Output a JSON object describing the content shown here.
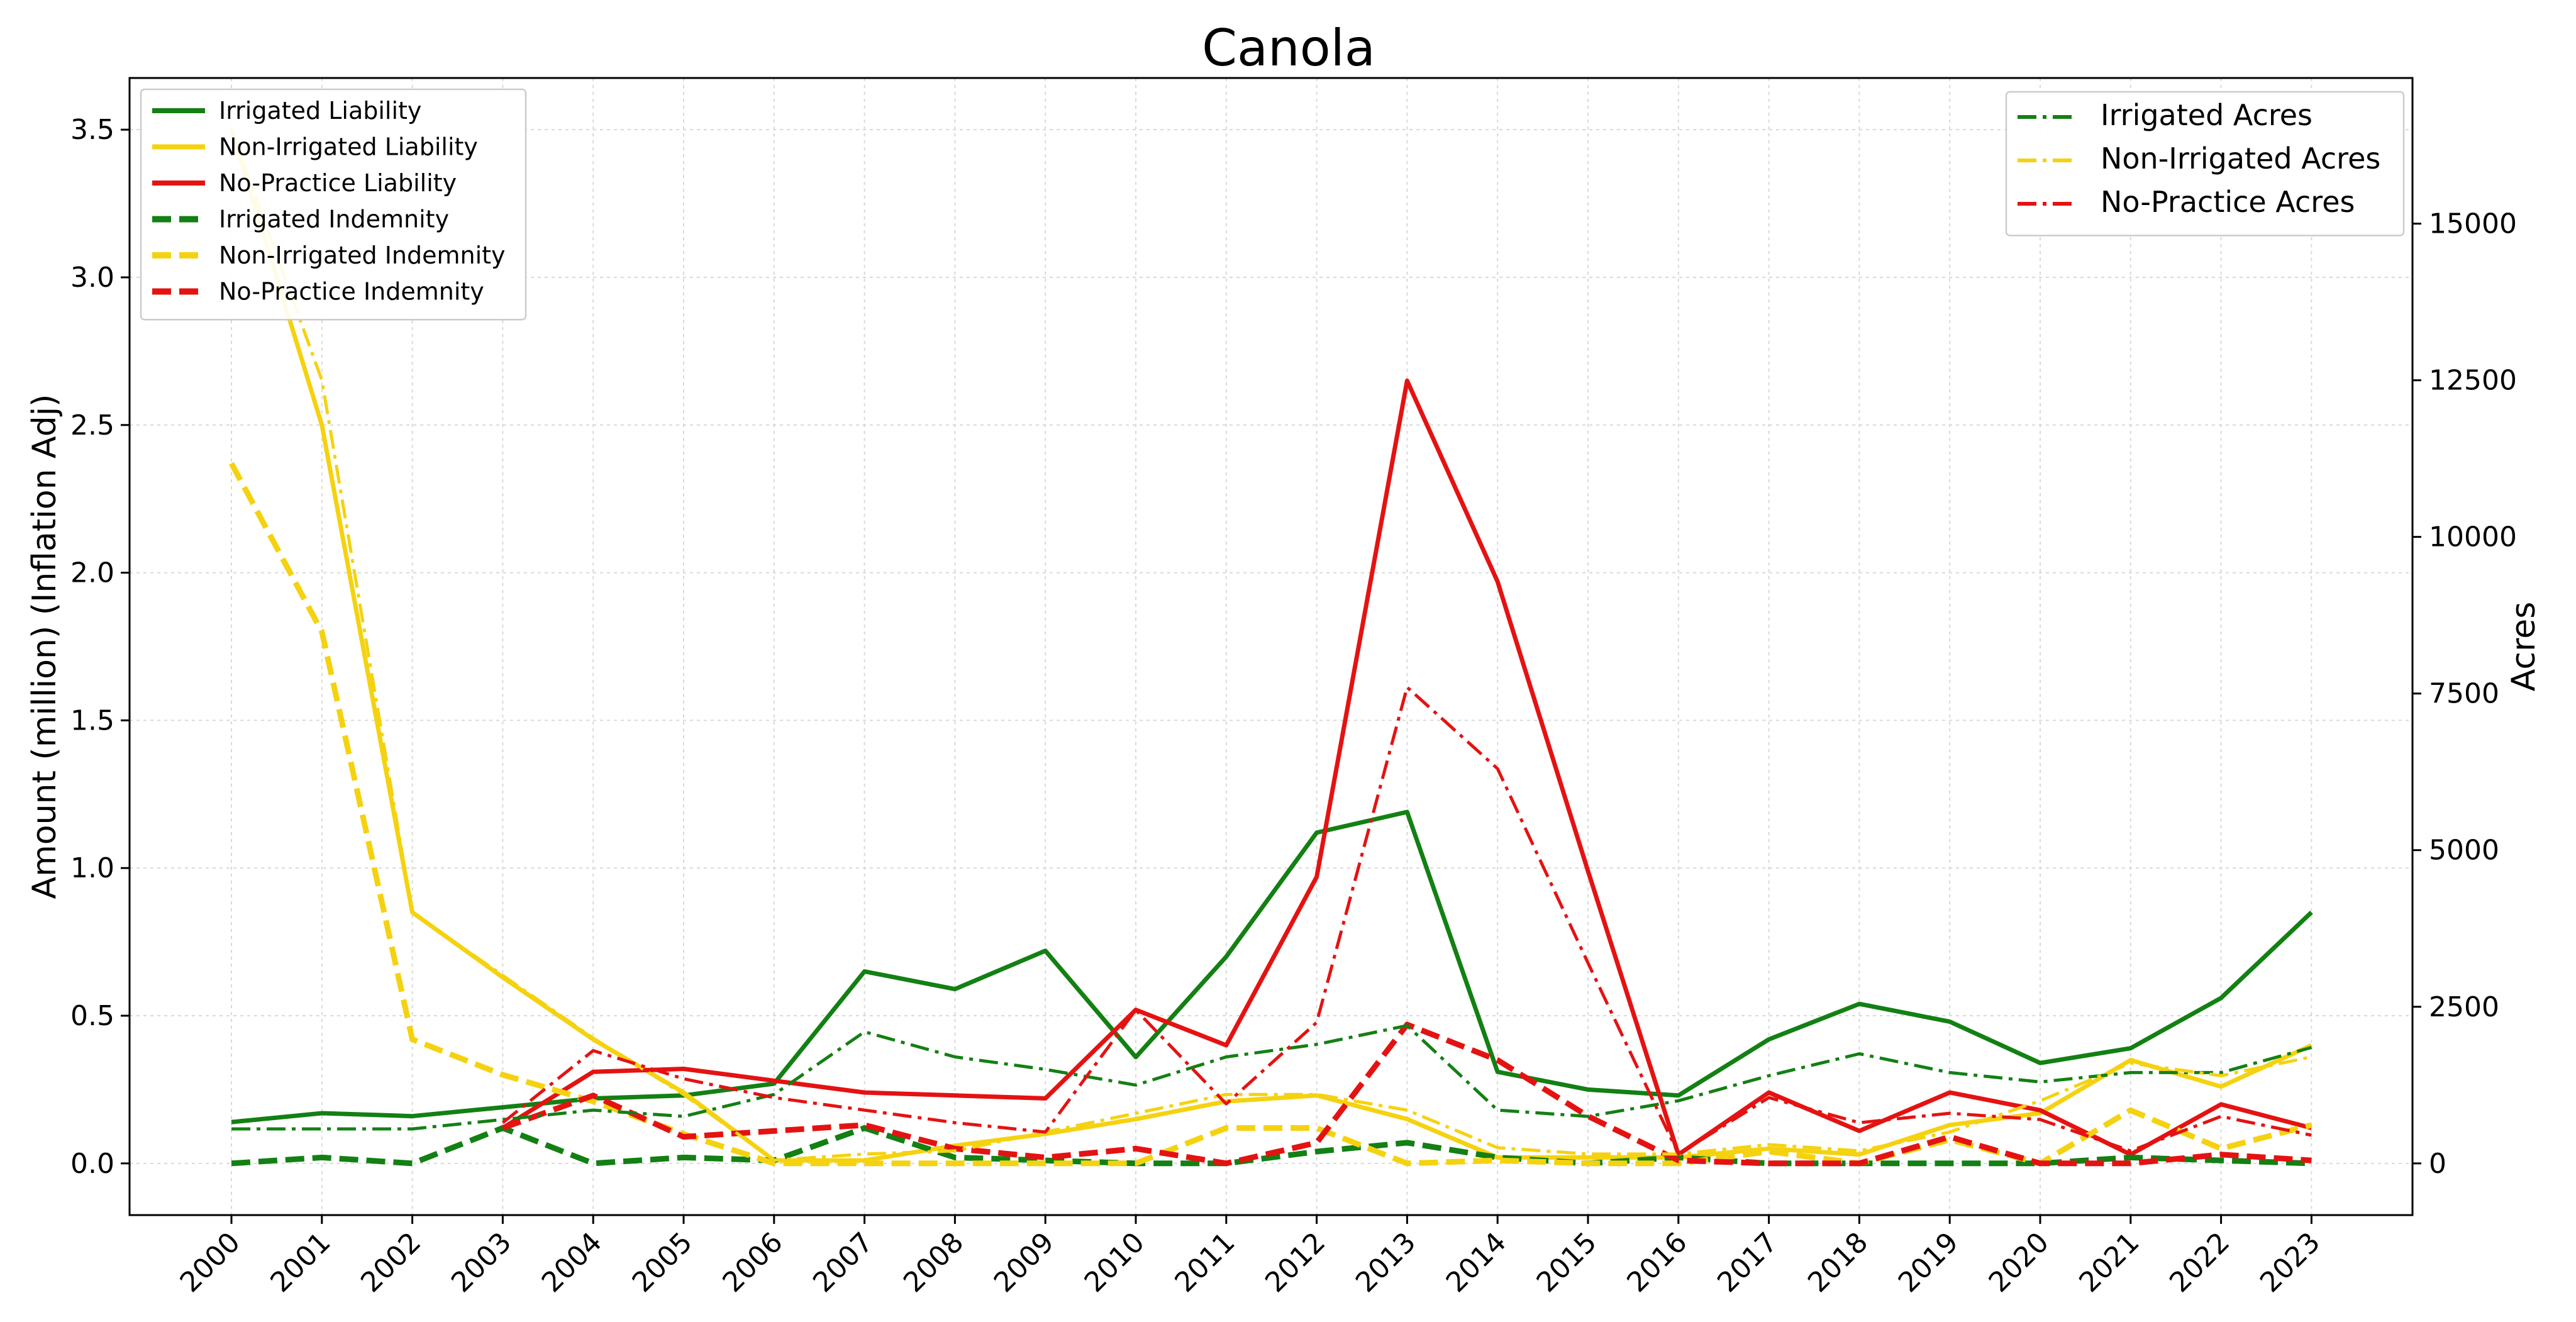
{
  "chart_data": {
    "type": "line",
    "title": "Canola",
    "xlabel": "",
    "ylabel": "Amount (million) (Inflation Adj)",
    "y2label": "Acres",
    "x": [
      2000,
      2001,
      2002,
      2003,
      2004,
      2005,
      2006,
      2007,
      2008,
      2009,
      2010,
      2011,
      2012,
      2013,
      2014,
      2015,
      2016,
      2017,
      2018,
      2019,
      2020,
      2021,
      2022,
      2023
    ],
    "xtick_labels": [
      "2000",
      "2001",
      "2002",
      "2003",
      "2004",
      "2005",
      "2006",
      "2007",
      "2008",
      "2009",
      "2010",
      "2011",
      "2012",
      "2013",
      "2014",
      "2015",
      "2016",
      "2017",
      "2018",
      "2019",
      "2020",
      "2021",
      "2022",
      "2023"
    ],
    "ylim": [
      -0.175,
      3.675
    ],
    "yticks": [
      0.0,
      0.5,
      1.0,
      1.5,
      2.0,
      2.5,
      3.0,
      3.5
    ],
    "ytick_labels": [
      "0.0",
      "0.5",
      "1.0",
      "1.5",
      "2.0",
      "2.5",
      "3.0",
      "3.5"
    ],
    "y2lim": [
      -825,
      17325
    ],
    "y2ticks": [
      0,
      2500,
      5000,
      7500,
      10000,
      12500,
      15000
    ],
    "y2tick_labels": [
      "0",
      "2500",
      "5000",
      "7500",
      "10000",
      "12500",
      "15000"
    ],
    "grid": true,
    "left_legend_placement": "top-left",
    "right_legend_placement": "top-right",
    "series": [
      {
        "name": "Irrigated Liability",
        "axis": "left",
        "color": "#138013",
        "style": "solid",
        "values": [
          0.14,
          0.17,
          0.16,
          0.19,
          0.22,
          0.23,
          0.27,
          0.65,
          0.59,
          0.72,
          0.36,
          0.7,
          1.12,
          1.19,
          0.31,
          0.25,
          0.23,
          0.42,
          0.54,
          0.48,
          0.34,
          0.39,
          0.56,
          0.85
        ]
      },
      {
        "name": "Non-Irrigated Liability",
        "axis": "left",
        "color": "#F5D20F",
        "style": "solid",
        "values": [
          3.5,
          2.5,
          0.85,
          0.63,
          0.42,
          0.24,
          0.01,
          0.01,
          0.06,
          0.1,
          0.15,
          0.21,
          0.23,
          0.15,
          0.02,
          0.02,
          0.02,
          0.05,
          0.03,
          0.13,
          0.17,
          0.35,
          0.26,
          0.4
        ]
      },
      {
        "name": "No-Practice Liability",
        "axis": "left",
        "color": "#E51212",
        "style": "solid",
        "values": [
          null,
          null,
          null,
          0.12,
          0.31,
          0.32,
          0.28,
          0.24,
          0.23,
          0.22,
          0.52,
          0.4,
          0.97,
          2.65,
          1.97,
          0.99,
          0.03,
          0.24,
          0.11,
          0.24,
          0.18,
          0.03,
          0.2,
          0.12
        ]
      },
      {
        "name": "Irrigated Indemnity",
        "axis": "left",
        "color": "#138013",
        "style": "dashed",
        "values": [
          0.0,
          0.02,
          0.0,
          0.12,
          0.0,
          0.02,
          0.01,
          0.12,
          0.02,
          0.01,
          0.0,
          0.0,
          0.04,
          0.07,
          0.02,
          0.0,
          0.02,
          0.0,
          0.0,
          0.0,
          0.0,
          0.02,
          0.01,
          0.0
        ]
      },
      {
        "name": "Non-Irrigated Indemnity",
        "axis": "left",
        "color": "#F5D20F",
        "style": "dashed",
        "values": [
          2.37,
          1.8,
          0.42,
          0.3,
          0.21,
          0.1,
          0.0,
          0.0,
          0.0,
          0.0,
          0.0,
          0.12,
          0.12,
          0.0,
          0.01,
          0.0,
          0.0,
          0.04,
          0.0,
          0.08,
          0.0,
          0.18,
          0.05,
          0.13
        ]
      },
      {
        "name": "No-Practice Indemnity",
        "axis": "left",
        "color": "#E51212",
        "style": "dashed",
        "values": [
          null,
          null,
          null,
          0.12,
          0.23,
          0.09,
          0.11,
          0.13,
          0.05,
          0.02,
          0.05,
          0.0,
          0.07,
          0.47,
          0.35,
          0.16,
          0.01,
          0.0,
          0.0,
          0.09,
          0.0,
          0.0,
          0.03,
          0.01
        ]
      },
      {
        "name": "Irrigated Acres",
        "axis": "right",
        "color": "#138013",
        "style": "dashdot",
        "values": [
          550,
          550,
          550,
          700,
          850,
          750,
          1100,
          2100,
          1700,
          1500,
          1250,
          1700,
          1900,
          2200,
          850,
          750,
          1000,
          1400,
          1750,
          1450,
          1300,
          1450,
          1450,
          1850
        ]
      },
      {
        "name": "Non-Irrigated Acres",
        "axis": "right",
        "color": "#F5D20F",
        "style": "dashdot",
        "values": [
          16500,
          12500,
          4000,
          3000,
          2000,
          1100,
          50,
          150,
          200,
          500,
          800,
          1100,
          1100,
          850,
          250,
          150,
          150,
          300,
          200,
          500,
          1000,
          1600,
          1400,
          1700
        ]
      },
      {
        "name": "No-Practice Acres",
        "axis": "right",
        "color": "#E51212",
        "style": "dashdot",
        "values": [
          null,
          null,
          null,
          650,
          1800,
          1350,
          1050,
          850,
          650,
          500,
          2450,
          950,
          2250,
          7600,
          6300,
          3200,
          150,
          1050,
          650,
          800,
          700,
          200,
          750,
          450
        ]
      }
    ]
  }
}
